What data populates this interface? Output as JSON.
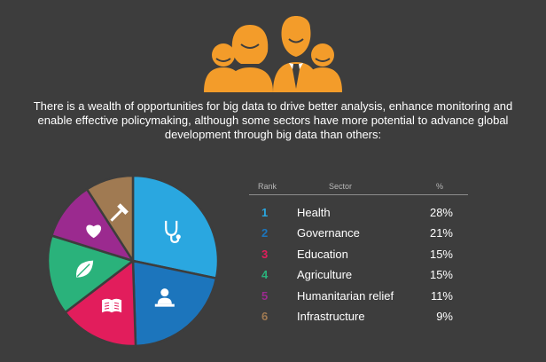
{
  "intro_text": "There is a wealth of opportunities for big data to drive better analysis, enhance monitoring and enable effective policymaking, although some sectors have more potential to advance global development through big data than others:",
  "colors": {
    "background": "#3d3d3d",
    "illustration": "#f39c2a",
    "health": "#2aa7e0",
    "governance": "#1c75bc",
    "education": "#e21d5c",
    "agriculture": "#2ab27b",
    "humanitarian": "#9b2a8f",
    "infrastructure": "#a07a52"
  },
  "table": {
    "headers": {
      "rank": "Rank",
      "sector": "Sector",
      "percent": "%"
    },
    "rows": [
      {
        "rank": "1",
        "sector": "Health",
        "percent": "28%",
        "color": "#2aa7e0"
      },
      {
        "rank": "2",
        "sector": "Governance",
        "percent": "21%",
        "color": "#1c75bc"
      },
      {
        "rank": "3",
        "sector": "Education",
        "percent": "15%",
        "color": "#e21d5c"
      },
      {
        "rank": "4",
        "sector": "Agriculture",
        "percent": "15%",
        "color": "#2ab27b"
      },
      {
        "rank": "5",
        "sector": "Humanitarian relief",
        "percent": "11%",
        "color": "#9b2a8f"
      },
      {
        "rank": "6",
        "sector": "Infrastructure",
        "percent": "9%",
        "color": "#a07a52"
      }
    ]
  },
  "chart_data": {
    "type": "pie",
    "categories": [
      "Health",
      "Governance",
      "Education",
      "Agriculture",
      "Humanitarian relief",
      "Infrastructure"
    ],
    "values": [
      28,
      21,
      15,
      15,
      11,
      9
    ],
    "colors": [
      "#2aa7e0",
      "#1c75bc",
      "#e21d5c",
      "#2ab27b",
      "#9b2a8f",
      "#a07a52"
    ],
    "slice_icons": [
      "stethoscope-icon",
      "person-at-desk-icon",
      "open-book-icon",
      "leaf-icon",
      "heart-icon",
      "hammer-icon"
    ],
    "start": "top",
    "direction": "clockwise"
  }
}
